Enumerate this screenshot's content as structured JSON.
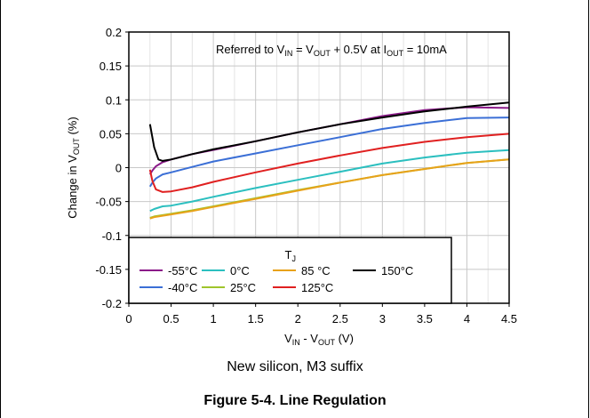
{
  "caption": {
    "subtitle": "New silicon, M3 suffix",
    "figure": "Figure 5-4. Line Regulation"
  },
  "chart_data": {
    "type": "line",
    "annotation": {
      "parts": [
        {
          "t": "Referred to V",
          "sub": false
        },
        {
          "t": "IN",
          "sub": true
        },
        {
          "t": " = V",
          "sub": false
        },
        {
          "t": "OUT",
          "sub": true
        },
        {
          "t": " + 0.5V at I",
          "sub": false
        },
        {
          "t": "OUT",
          "sub": true
        },
        {
          "t": " = 10mA",
          "sub": false
        }
      ]
    },
    "xlabel": {
      "parts": [
        {
          "t": "V",
          "sub": false
        },
        {
          "t": "IN",
          "sub": true
        },
        {
          "t": " - V",
          "sub": false
        },
        {
          "t": "OUT",
          "sub": true
        },
        {
          "t": " (V)",
          "sub": false
        }
      ]
    },
    "ylabel": {
      "parts": [
        {
          "t": "Change in V",
          "sub": false
        },
        {
          "t": "OUT",
          "sub": true
        },
        {
          "t": " (%)",
          "sub": false
        }
      ]
    },
    "legend_title": {
      "main": "T",
      "sub": "J"
    },
    "legend_position": "bottom-left",
    "xlim": [
      0,
      4.5
    ],
    "ylim": [
      -0.2,
      0.2
    ],
    "x_ticks": [
      "0",
      "0.5",
      "1",
      "1.5",
      "2",
      "2.5",
      "3",
      "3.5",
      "4",
      "4.5"
    ],
    "y_ticks": [
      "-0.2",
      "-0.15",
      "-0.1",
      "-0.05",
      "0",
      "0.05",
      "0.1",
      "0.15",
      "0.2"
    ],
    "grid": true,
    "series": [
      {
        "name": "-55°C",
        "color": "#8b1a89",
        "x": [
          0.25,
          0.28,
          0.32,
          0.4,
          0.5,
          0.75,
          1.0,
          1.5,
          2.0,
          2.5,
          3.0,
          3.5,
          4.0,
          4.5
        ],
        "y": [
          -0.01,
          -0.004,
          0.002,
          0.008,
          0.012,
          0.02,
          0.026,
          0.039,
          0.052,
          0.064,
          0.076,
          0.085,
          0.089,
          0.088
        ]
      },
      {
        "name": "-40°C",
        "color": "#3b6fd6",
        "x": [
          0.25,
          0.28,
          0.32,
          0.4,
          0.5,
          0.75,
          1.0,
          1.5,
          2.0,
          2.5,
          3.0,
          3.5,
          4.0,
          4.5
        ],
        "y": [
          -0.028,
          -0.022,
          -0.016,
          -0.01,
          -0.007,
          0.001,
          0.009,
          0.021,
          0.033,
          0.045,
          0.057,
          0.066,
          0.073,
          0.074
        ]
      },
      {
        "name": "0°C",
        "color": "#2bbfbf",
        "x": [
          0.25,
          0.3,
          0.4,
          0.5,
          0.75,
          1.0,
          1.5,
          2.0,
          2.5,
          3.0,
          3.5,
          4.0,
          4.5
        ],
        "y": [
          -0.064,
          -0.061,
          -0.057,
          -0.056,
          -0.05,
          -0.043,
          -0.03,
          -0.018,
          -0.006,
          0.006,
          0.015,
          0.022,
          0.026
        ]
      },
      {
        "name": "25°C",
        "color": "#9fc52b",
        "x": [
          0.25,
          0.3,
          0.4,
          0.5,
          0.75,
          1.0,
          1.5,
          2.0,
          2.5,
          3.0,
          3.5,
          4.0,
          4.5
        ],
        "y": [
          -0.074,
          -0.072,
          -0.07,
          -0.068,
          -0.063,
          -0.057,
          -0.045,
          -0.033,
          -0.022,
          -0.011,
          -0.002,
          0.007,
          0.012
        ]
      },
      {
        "name": "85 °C",
        "color": "#e8a21a",
        "x": [
          0.25,
          0.3,
          0.4,
          0.5,
          0.75,
          1.0,
          1.5,
          2.0,
          2.5,
          3.0,
          3.5,
          4.0,
          4.5
        ],
        "y": [
          -0.075,
          -0.073,
          -0.071,
          -0.069,
          -0.064,
          -0.058,
          -0.046,
          -0.034,
          -0.022,
          -0.011,
          -0.002,
          0.007,
          0.012
        ]
      },
      {
        "name": "125°C",
        "color": "#e02020",
        "x": [
          0.25,
          0.28,
          0.32,
          0.4,
          0.5,
          0.75,
          1.0,
          1.5,
          2.0,
          2.5,
          3.0,
          3.5,
          4.0,
          4.5
        ],
        "y": [
          -0.003,
          -0.02,
          -0.032,
          -0.036,
          -0.035,
          -0.029,
          -0.021,
          -0.007,
          0.006,
          0.018,
          0.029,
          0.038,
          0.045,
          0.05
        ]
      },
      {
        "name": "150°C",
        "color": "#000000",
        "x": [
          0.25,
          0.3,
          0.35,
          0.4,
          0.5,
          0.75,
          1.0,
          1.5,
          2.0,
          2.5,
          3.0,
          3.5,
          4.0,
          4.5
        ],
        "y": [
          0.064,
          0.03,
          0.012,
          0.01,
          0.012,
          0.02,
          0.027,
          0.039,
          0.052,
          0.064,
          0.074,
          0.083,
          0.09,
          0.096
        ]
      }
    ],
    "legend_order": [
      [
        "-55°C",
        "0°C",
        "85 °C",
        "150°C"
      ],
      [
        "-40°C",
        "25°C",
        "125°C"
      ]
    ]
  }
}
